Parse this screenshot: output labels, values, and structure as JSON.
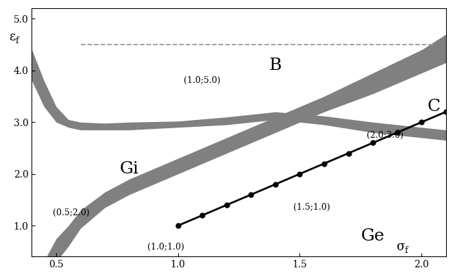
{
  "chart_data": {
    "type": "phase_diagram",
    "xlabel": "σf",
    "ylabel": "εf",
    "xlim": [
      0.4,
      2.1
    ],
    "ylim": [
      0.4,
      5.2
    ],
    "xticks": [
      0.5,
      1.0,
      1.5,
      2.0
    ],
    "yticks": [
      1.0,
      2.0,
      3.0,
      4.0,
      5.0
    ],
    "grid": false,
    "bands": [
      {
        "color": "#808080",
        "x": [
          0.46,
          0.5,
          0.55,
          0.6,
          0.7,
          0.8,
          1.0,
          1.2,
          1.4,
          1.6,
          1.8,
          2.0,
          2.1
        ],
        "lower": [
          0.2,
          0.3,
          0.6,
          0.95,
          1.35,
          1.6,
          2.0,
          2.4,
          2.8,
          3.2,
          3.55,
          3.95,
          4.15
        ],
        "upper": [
          0.4,
          0.75,
          1.0,
          1.3,
          1.65,
          1.9,
          2.3,
          2.7,
          3.1,
          3.5,
          3.95,
          4.4,
          4.7
        ]
      },
      {
        "color": "#808080",
        "x": [
          0.4,
          0.45,
          0.5,
          0.55,
          0.6,
          0.7,
          0.8,
          1.0,
          1.2,
          1.4,
          1.6,
          1.8,
          2.0,
          2.1
        ],
        "lower": [
          3.8,
          3.3,
          3.0,
          2.9,
          2.85,
          2.85,
          2.85,
          2.9,
          2.95,
          3.05,
          2.95,
          2.8,
          2.7,
          2.65
        ],
        "upper": [
          4.4,
          3.8,
          3.3,
          3.05,
          3.0,
          2.98,
          3.0,
          3.02,
          3.1,
          3.2,
          3.12,
          3.0,
          2.9,
          2.85
        ]
      }
    ],
    "lines": [
      {
        "color": "#999999",
        "line_style": "dashed",
        "marker": "none",
        "x": [
          0.6,
          2.05
        ],
        "values": [
          4.5,
          4.5
        ]
      },
      {
        "color": "#000000",
        "line_style": "solid",
        "marker": "circle",
        "x": [
          1.0,
          1.1,
          1.2,
          1.3,
          1.4,
          1.5,
          1.6,
          1.7,
          1.8,
          1.9,
          2.0,
          2.1
        ],
        "values": [
          1.0,
          1.2,
          1.4,
          1.6,
          1.8,
          2.0,
          2.2,
          2.4,
          2.6,
          2.8,
          3.0,
          3.2
        ]
      }
    ],
    "regions": [
      {
        "text": "B",
        "x": 1.4,
        "y": 4.1
      },
      {
        "text": "C",
        "x": 2.05,
        "y": 3.3
      },
      {
        "text": "Gi",
        "x": 0.8,
        "y": 2.1
      },
      {
        "text": "Ge",
        "x": 1.8,
        "y": 0.8
      }
    ],
    "annotations": [
      {
        "text": "(1.0;5.0)",
        "x": 1.1,
        "y": 3.8
      },
      {
        "text": "(2.0;3.0)",
        "x": 1.85,
        "y": 2.75
      },
      {
        "text": "(0.5;2.0)",
        "x": 0.56,
        "y": 1.25
      },
      {
        "text": "(1.0;1.0)",
        "x": 0.95,
        "y": 0.58
      },
      {
        "text": "(1.5;1.0)",
        "x": 1.55,
        "y": 1.35
      }
    ]
  }
}
